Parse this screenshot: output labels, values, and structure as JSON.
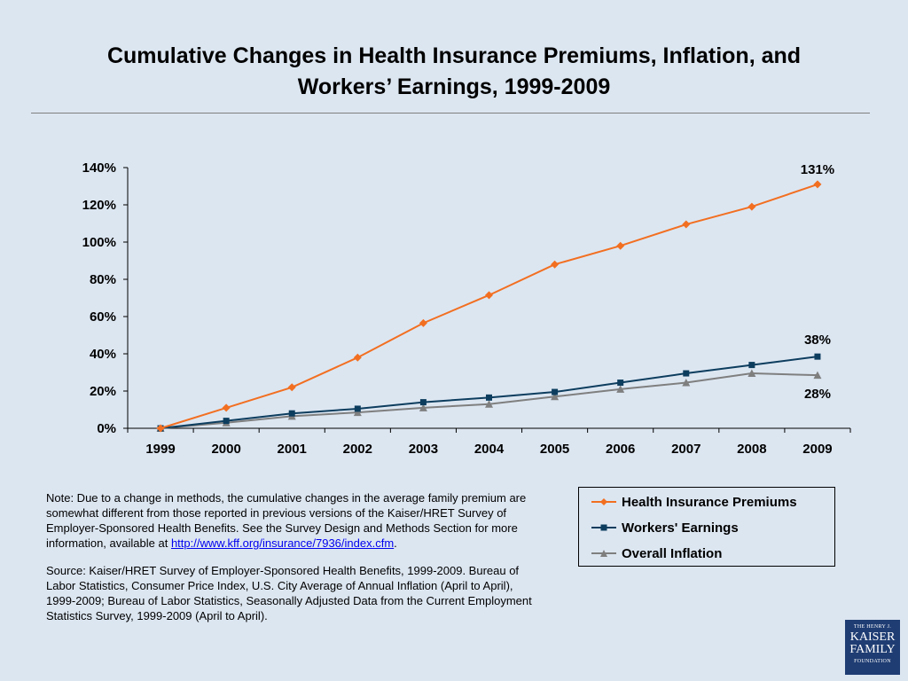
{
  "title": {
    "line1": "Cumulative Changes in Health Insurance Premiums, Inflation, and",
    "line2": "Workers’ Earnings, 1999-2009"
  },
  "chart_data": {
    "type": "line",
    "x": [
      "1999",
      "2000",
      "2001",
      "2002",
      "2003",
      "2004",
      "2005",
      "2006",
      "2007",
      "2008",
      "2009"
    ],
    "ylim": [
      0,
      140
    ],
    "yticks": [
      "0%",
      "20%",
      "40%",
      "60%",
      "80%",
      "100%",
      "120%",
      "140%"
    ],
    "grid": false,
    "legend_position": "bottom-right",
    "series": [
      {
        "name": "Health Insurance Premiums",
        "color": "#f26f21",
        "marker": "diamond",
        "values": [
          0,
          11,
          22,
          38,
          56.5,
          71.5,
          88,
          98,
          109.5,
          119,
          131
        ],
        "end_label": "131%"
      },
      {
        "name": "Workers' Earnings",
        "color": "#0d3d5e",
        "marker": "square",
        "values": [
          0,
          4,
          8,
          10.5,
          14,
          16.5,
          19.5,
          24.5,
          29.5,
          34,
          38.5
        ],
        "end_label": "38%"
      },
      {
        "name": "Overall Inflation",
        "color": "#7f7f7f",
        "marker": "triangle",
        "values": [
          0,
          3,
          6.5,
          8.5,
          11,
          13,
          17,
          21,
          24.5,
          29.5,
          28.5
        ],
        "end_label": "28%"
      }
    ]
  },
  "note": {
    "text": "Note:  Due to a change in methods, the cumulative changes in the average family premium are somewhat different from those reported in previous versions of the Kaiser/HRET Survey of Employer-Sponsored Health Benefits.  See the Survey Design and Methods Section for more information, available at",
    "link": "http://www.kff.org/insurance/7936/index.cfm",
    "after_link": "."
  },
  "source": {
    "text": "Source:  Kaiser/HRET Survey of Employer-Sponsored Health Benefits, 1999-2009. Bureau of Labor Statistics, Consumer Price Index, U.S. City Average of Annual Inflation (April to April), 1999-2009; Bureau of Labor Statistics, Seasonally Adjusted Data from the Current Employment Statistics Survey, 1999-2009 (April to April)."
  },
  "logo": {
    "line1": "THE HENRY J.",
    "line2": "KAISER",
    "line3": "FAMILY",
    "line4": "FOUNDATION"
  }
}
